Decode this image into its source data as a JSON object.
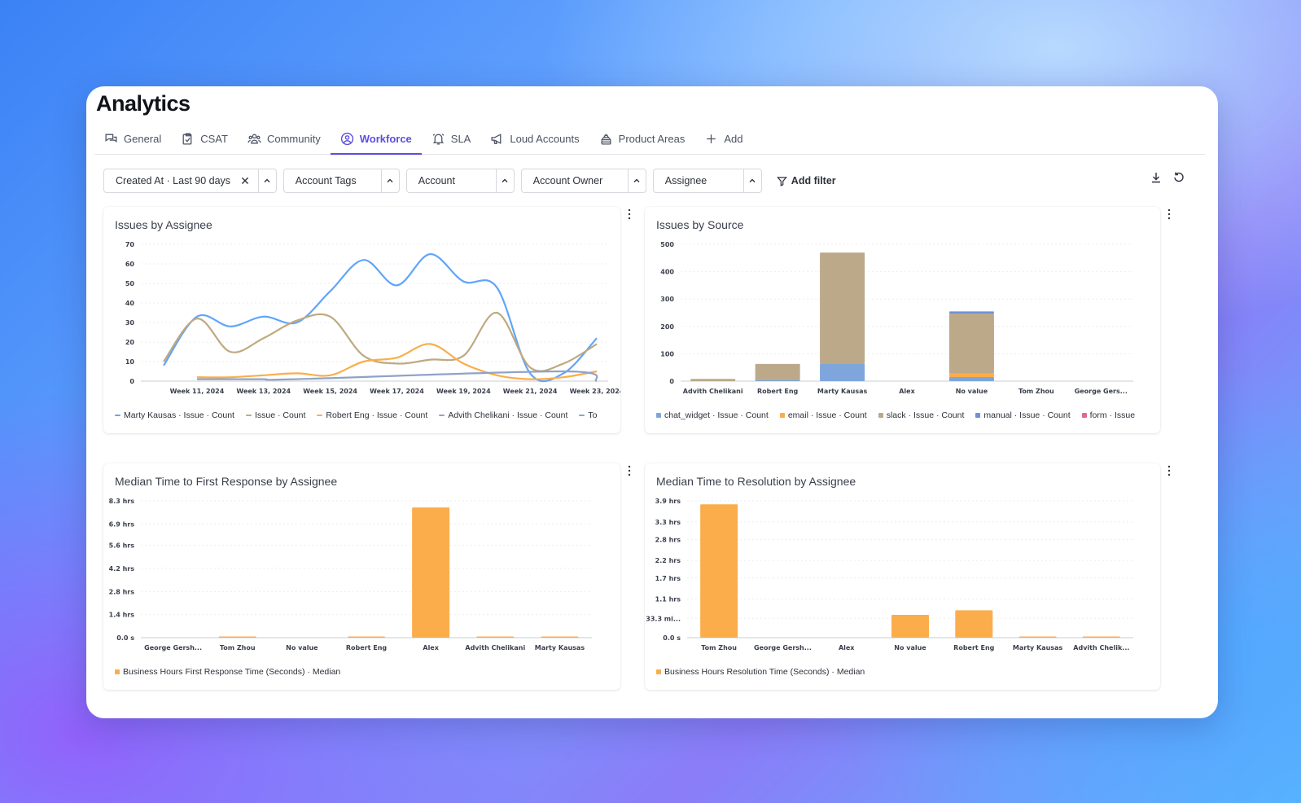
{
  "page": {
    "title": "Analytics"
  },
  "tabs": [
    {
      "label": "General",
      "icon": "chat-bubbles-icon",
      "active": false
    },
    {
      "label": "CSAT",
      "icon": "clipboard-icon",
      "active": false
    },
    {
      "label": "Community",
      "icon": "people-icon",
      "active": false
    },
    {
      "label": "Workforce",
      "icon": "user-circle-icon",
      "active": true
    },
    {
      "label": "SLA",
      "icon": "bell-icon",
      "active": false
    },
    {
      "label": "Loud Accounts",
      "icon": "megaphone-icon",
      "active": false
    },
    {
      "label": "Product Areas",
      "icon": "layers-icon",
      "active": false
    },
    {
      "label": "Add",
      "icon": "plus-icon",
      "active": false
    }
  ],
  "filters": {
    "items": [
      {
        "label": "Created At · Last 90 days",
        "clearable": true
      },
      {
        "label": "Account Tags",
        "clearable": false
      },
      {
        "label": "Account",
        "clearable": false
      },
      {
        "label": "Account Owner",
        "clearable": false
      },
      {
        "label": "Assignee",
        "clearable": false
      }
    ],
    "add_label": "Add filter"
  },
  "colors": {
    "accent": "#5b4ee0",
    "blue": "#60a5fa",
    "tan": "#bfa97f",
    "orange": "#fbad4b",
    "steel": "#7ea6dc",
    "slate": "#8fa3c5",
    "pink": "#e0688f"
  },
  "chart_data": [
    {
      "id": "issues-by-assignee",
      "type": "line",
      "title": "Issues by Assignee",
      "ylim": [
        0,
        70
      ],
      "yticks": [
        0,
        10,
        20,
        30,
        40,
        50,
        60,
        70
      ],
      "x": [
        "Week 10, 2024",
        "Week 11, 2024",
        "Week 12, 2024",
        "Week 13, 2024",
        "Week 14, 2024",
        "Week 15, 2024",
        "Week 16, 2024",
        "Week 17, 2024",
        "Week 18, 2024",
        "Week 19, 2024",
        "Week 20, 2024",
        "Week 21, 2024",
        "Week 22, 2024",
        "Week 23, 2024"
      ],
      "xtick_labels": [
        "Week 11, 2024",
        "Week 13, 2024",
        "Week 15, 2024",
        "Week 17, 2024",
        "Week 19, 2024",
        "Week 21, 2024",
        "Week 23, 2024"
      ],
      "series": [
        {
          "name": "Marty Kausas · Issue · Count",
          "color": "#60a5fa",
          "values": [
            8,
            33,
            28,
            33,
            30,
            46,
            62,
            49,
            65,
            51,
            48,
            4,
            4,
            22
          ]
        },
        {
          "name": "Issue · Count",
          "color": "#bfa97f",
          "values": [
            10,
            32,
            15,
            22,
            31,
            33,
            13,
            9,
            11,
            13,
            35,
            7,
            9,
            19
          ]
        },
        {
          "name": "Robert Eng · Issue · Count",
          "color": "#fbad4b",
          "values": [
            null,
            2,
            2,
            3,
            4,
            3,
            10,
            12,
            19,
            9,
            3,
            1,
            2,
            5
          ]
        },
        {
          "name": "Advith Chelikani · Issue · Count",
          "color": "#8fa3c5",
          "values": [
            null,
            1,
            1,
            1,
            1,
            null,
            null,
            null,
            null,
            null,
            null,
            null,
            5,
            0
          ]
        }
      ],
      "legend": [
        "Marty Kausas · Issue · Count",
        "Issue · Count",
        "Robert Eng · Issue · Count",
        "Advith Chelikani · Issue · Count",
        "To"
      ]
    },
    {
      "id": "issues-by-source",
      "type": "bar",
      "stacked": true,
      "title": "Issues by Source",
      "ylim": [
        0,
        500
      ],
      "yticks": [
        0,
        100,
        200,
        300,
        400,
        500
      ],
      "categories": [
        "Advith Chelikani",
        "Robert Eng",
        "Marty Kausas",
        "Alex",
        "No value",
        "Tom Zhou",
        "George Gers..."
      ],
      "series": [
        {
          "name": "chat_widget · Issue · Count",
          "color": "#7ea6dc",
          "values": [
            0,
            3,
            65,
            0,
            15,
            0,
            0
          ]
        },
        {
          "name": "email · Issue · Count",
          "color": "#fbad4b",
          "values": [
            0,
            0,
            0,
            0,
            12,
            0,
            0
          ]
        },
        {
          "name": "slack · Issue · Count",
          "color": "#bba98a",
          "values": [
            8,
            60,
            405,
            0,
            220,
            0,
            0
          ]
        },
        {
          "name": "manual · Issue · Count",
          "color": "#6d93d6",
          "values": [
            0,
            0,
            0,
            0,
            8,
            0,
            0
          ]
        },
        {
          "name": "form · Issue",
          "color": "#e0688f",
          "values": [
            0,
            0,
            0,
            0,
            0,
            0,
            0
          ]
        }
      ],
      "legend": [
        "chat_widget · Issue · Count",
        "email · Issue · Count",
        "slack · Issue · Count",
        "manual · Issue · Count",
        "form · Issue"
      ]
    },
    {
      "id": "median-first-response",
      "type": "bar",
      "title": "Median Time to First Response by Assignee",
      "ylim": [
        0,
        8.3
      ],
      "yticks": [
        0,
        1.4,
        2.8,
        4.2,
        5.6,
        6.9,
        8.3
      ],
      "ytick_labels": [
        "0.0 s",
        "1.4 hrs",
        "2.8 hrs",
        "4.2 hrs",
        "5.6 hrs",
        "6.9 hrs",
        "8.3 hrs"
      ],
      "categories": [
        "George Gersh...",
        "Tom Zhou",
        "No value",
        "Robert Eng",
        "Alex",
        "Advith Chelikani",
        "Marty Kausas"
      ],
      "series": [
        {
          "name": "Business Hours First Response Time (Seconds) · Median",
          "color": "#fbad4b",
          "values": [
            0,
            0.03,
            0,
            0.02,
            7.9,
            0.02,
            0.01
          ]
        }
      ],
      "legend": [
        "Business Hours First Response Time (Seconds) · Median"
      ]
    },
    {
      "id": "median-resolution",
      "type": "bar",
      "title": "Median Time to Resolution by Assignee",
      "ylim": [
        0,
        3.9
      ],
      "yticks": [
        0,
        0.55,
        1.1,
        1.7,
        2.2,
        2.8,
        3.3,
        3.9
      ],
      "ytick_labels": [
        "0.0 s",
        "33.3 mi...",
        "1.1 hrs",
        "1.7 hrs",
        "2.2 hrs",
        "2.8 hrs",
        "3.3 hrs",
        "3.9 hrs"
      ],
      "categories": [
        "Tom Zhou",
        "George Gersh...",
        "Alex",
        "No value",
        "Robert Eng",
        "Marty Kausas",
        "Advith Chelik..."
      ],
      "series": [
        {
          "name": "Business Hours Resolution Time (Seconds) · Median",
          "color": "#fbad4b",
          "values": [
            3.8,
            0,
            0,
            0.65,
            0.78,
            0.01,
            0.03
          ]
        }
      ],
      "legend": [
        "Business Hours Resolution Time (Seconds) · Median"
      ]
    }
  ]
}
